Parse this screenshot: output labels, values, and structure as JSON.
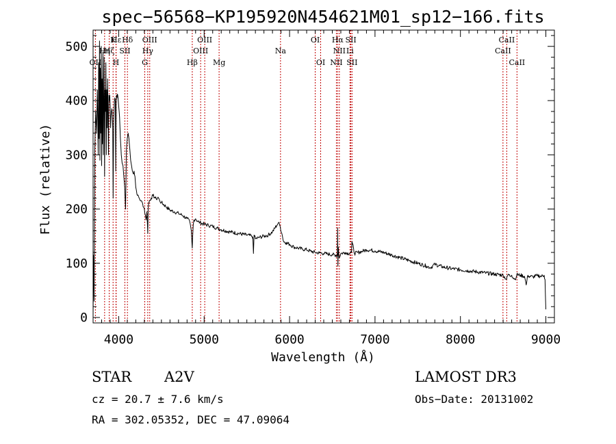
{
  "chart_data": {
    "type": "line",
    "title": "spec−56568−KP195920N454621M01_sp12−166.fits",
    "xlabel": "Wavelength (Å)",
    "ylabel": "Flux (relative)",
    "xlim": [
      3700,
      9100
    ],
    "ylim": [
      -10,
      530
    ],
    "xticks": [
      4000,
      5000,
      6000,
      7000,
      8000,
      9000
    ],
    "xtick_labels": [
      "4000",
      "5000",
      "6000",
      "7000",
      "8000",
      "9000"
    ],
    "yticks": [
      0,
      100,
      200,
      300,
      400,
      500
    ],
    "ytick_labels": [
      "0",
      "100",
      "200",
      "300",
      "400",
      "500"
    ],
    "series": [
      {
        "name": "flux",
        "x": [
          3700,
          3705,
          3712,
          3720,
          3730,
          3740,
          3750,
          3760,
          3765,
          3770,
          3775,
          3780,
          3785,
          3790,
          3795,
          3800,
          3805,
          3810,
          3815,
          3820,
          3825,
          3830,
          3835,
          3840,
          3845,
          3850,
          3855,
          3860,
          3865,
          3870,
          3875,
          3880,
          3885,
          3890,
          3895,
          3900,
          3905,
          3910,
          3915,
          3920,
          3925,
          3930,
          3935,
          3940,
          3945,
          3950,
          3955,
          3960,
          3965,
          3970,
          3975,
          3980,
          3985,
          3990,
          3995,
          4000,
          4010,
          4020,
          4030,
          4040,
          4050,
          4060,
          4070,
          4080,
          4090,
          4100,
          4110,
          4120,
          4130,
          4140,
          4150,
          4160,
          4170,
          4180,
          4190,
          4200,
          4220,
          4240,
          4260,
          4280,
          4300,
          4310,
          4320,
          4330,
          4335,
          4340,
          4345,
          4350,
          4360,
          4380,
          4400,
          4420,
          4440,
          4460,
          4480,
          4500,
          4550,
          4600,
          4650,
          4700,
          4750,
          4800,
          4830,
          4850,
          4856,
          4861,
          4866,
          4872,
          4880,
          4900,
          4920,
          4950,
          5000,
          5050,
          5100,
          5150,
          5200,
          5300,
          5400,
          5500,
          5560,
          5570,
          5577,
          5584,
          5590,
          5600,
          5650,
          5700,
          5750,
          5800,
          5850,
          5870,
          5890,
          5910,
          5930,
          5960,
          6000,
          6050,
          6100,
          6150,
          6200,
          6250,
          6300,
          6350,
          6400,
          6450,
          6500,
          6540,
          6555,
          6560,
          6563,
          6566,
          6570,
          6580,
          6600,
          6650,
          6700,
          6720,
          6725,
          6730,
          6760,
          6800,
          6850,
          6900,
          6950,
          7000,
          7100,
          7200,
          7300,
          7400,
          7500,
          7600,
          7650,
          7700,
          7800,
          7900,
          8000,
          8100,
          8200,
          8300,
          8400,
          8500,
          8540,
          8560,
          8580,
          8600,
          8640,
          8660,
          8700,
          8750,
          8770,
          8790,
          8800,
          8850,
          8900,
          8950,
          8980,
          8990,
          8995,
          9000
        ],
        "y": [
          0,
          115,
          30,
          310,
          380,
          340,
          420,
          300,
          470,
          330,
          510,
          290,
          460,
          340,
          500,
          280,
          440,
          320,
          490,
          300,
          400,
          480,
          260,
          420,
          380,
          470,
          300,
          420,
          350,
          440,
          380,
          300,
          410,
          400,
          410,
          390,
          350,
          370,
          380,
          385,
          375,
          350,
          220,
          360,
          380,
          400,
          405,
          400,
          270,
          390,
          410,
          405,
          412,
          408,
          400,
          390,
          370,
          330,
          300,
          285,
          280,
          260,
          240,
          200,
          310,
          330,
          340,
          330,
          310,
          290,
          280,
          270,
          265,
          270,
          260,
          240,
          225,
          220,
          215,
          210,
          200,
          190,
          180,
          195,
          175,
          155,
          200,
          210,
          215,
          220,
          225,
          222,
          218,
          222,
          215,
          212,
          205,
          198,
          195,
          192,
          188,
          182,
          178,
          160,
          140,
          128,
          150,
          170,
          180,
          182,
          178,
          175,
          172,
          170,
          168,
          165,
          162,
          158,
          155,
          152,
          150,
          148,
          118,
          152,
          150,
          145,
          148,
          150,
          152,
          158,
          170,
          175,
          168,
          155,
          140,
          138,
          135,
          130,
          128,
          126,
          125,
          122,
          120,
          119,
          118,
          117,
          116,
          115,
          114,
          120,
          165,
          95,
          130,
          110,
          118,
          120,
          118,
          122,
          120,
          140,
          118,
          120,
          122,
          125,
          124,
          123,
          120,
          115,
          110,
          105,
          100,
          95,
          92,
          98,
          93,
          90,
          88,
          86,
          84,
          82,
          80,
          78,
          70,
          80,
          76,
          78,
          70,
          79,
          78,
          76,
          60,
          78,
          76,
          75,
          77,
          76,
          78,
          70,
          40,
          15
        ]
      }
    ],
    "lines": [
      {
        "name": "Hε",
        "wl": 3970,
        "row": 1
      },
      {
        "name": "OII",
        "wl": 3727,
        "row": 3
      },
      {
        "name": "Hη",
        "wl": 3835,
        "row": 2
      },
      {
        "name": "K",
        "wl": 3934,
        "row": 1
      },
      {
        "name": "Hζ",
        "wl": 3889,
        "row": 2
      },
      {
        "name": "H",
        "wl": 3968,
        "row": 3
      },
      {
        "name": "SII",
        "wl": 4072,
        "row": 2
      },
      {
        "name": "Hδ",
        "wl": 4102,
        "row": 1
      },
      {
        "name": "OIII",
        "wl": 4363,
        "row": 1
      },
      {
        "name": "Hγ",
        "wl": 4340,
        "row": 2
      },
      {
        "name": "G",
        "wl": 4305,
        "row": 3
      },
      {
        "name": "Hβ",
        "wl": 4861,
        "row": 3
      },
      {
        "name": "OIII",
        "wl": 5007,
        "row": 1
      },
      {
        "name": "OIII",
        "wl": 4959,
        "row": 2
      },
      {
        "name": "Mg",
        "wl": 5175,
        "row": 3
      },
      {
        "name": "Na",
        "wl": 5894,
        "row": 2
      },
      {
        "name": "OI",
        "wl": 6300,
        "row": 1
      },
      {
        "name": "OI",
        "wl": 6364,
        "row": 3
      },
      {
        "name": "Hα",
        "wl": 6563,
        "row": 1
      },
      {
        "name": "NII",
        "wl": 6583,
        "row": 2
      },
      {
        "name": "NII",
        "wl": 6548,
        "row": 3
      },
      {
        "name": "SII",
        "wl": 6717,
        "row": 1
      },
      {
        "name": "Li",
        "wl": 6707,
        "row": 2
      },
      {
        "name": "SII",
        "wl": 6731,
        "row": 3
      },
      {
        "name": "CaII",
        "wl": 8542,
        "row": 1
      },
      {
        "name": "CaII",
        "wl": 8498,
        "row": 2
      },
      {
        "name": "CaII",
        "wl": 8662,
        "row": 3
      }
    ]
  },
  "info": {
    "object_class": "STAR",
    "subclass": "A2V",
    "survey": "LAMOST DR3",
    "cz": "cz = 20.7 ± 7.6 km/s",
    "obs_date": "Obs−Date: 20131002",
    "radec": "RA = 302.05352, DEC =  47.09064"
  }
}
